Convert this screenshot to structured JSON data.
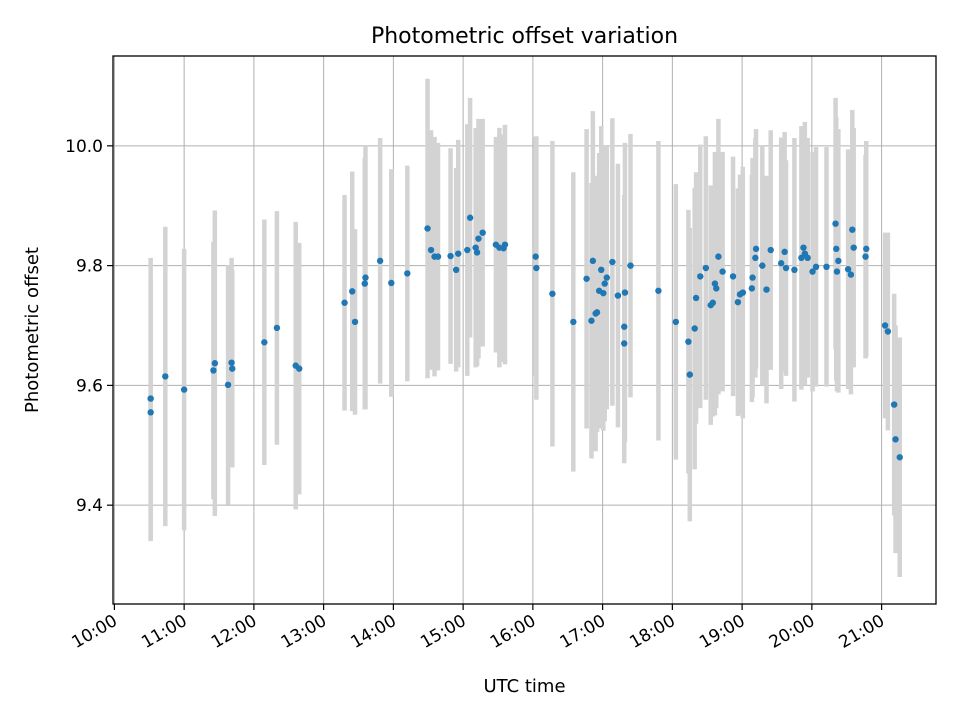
{
  "chart_data": {
    "type": "scatter",
    "title": "Photometric offset variation",
    "xlabel": "UTC time",
    "ylabel": "Photometric offset",
    "xlim": [
      9.98,
      21.78
    ],
    "ylim": [
      9.235,
      10.15
    ],
    "grid": true,
    "x_ticks": [
      10,
      11,
      12,
      13,
      14,
      15,
      16,
      17,
      18,
      19,
      20,
      21
    ],
    "x_tick_labels": [
      "10:00",
      "11:00",
      "12:00",
      "13:00",
      "14:00",
      "15:00",
      "16:00",
      "17:00",
      "18:00",
      "19:00",
      "20:00",
      "21:00"
    ],
    "y_ticks": [
      9.4,
      9.6,
      9.8,
      10.0
    ],
    "y_tick_labels": [
      "9.4",
      "9.6",
      "9.8",
      "10.0"
    ],
    "colors": {
      "point": "#1f77b4",
      "errorbar": "#d3d3d3",
      "grid": "#b0b0b0"
    },
    "series": [
      {
        "name": "offset",
        "points": [
          {
            "x": 10.52,
            "y": 9.578,
            "err": 0.235
          },
          {
            "x": 10.52,
            "y": 9.555,
            "err": 0.215
          },
          {
            "x": 10.73,
            "y": 9.615,
            "err": 0.25
          },
          {
            "x": 11.0,
            "y": 9.593,
            "err": 0.235
          },
          {
            "x": 11.42,
            "y": 9.625,
            "err": 0.215
          },
          {
            "x": 11.44,
            "y": 9.637,
            "err": 0.255
          },
          {
            "x": 11.63,
            "y": 9.601,
            "err": 0.2
          },
          {
            "x": 11.68,
            "y": 9.638,
            "err": 0.175
          },
          {
            "x": 11.69,
            "y": 9.628,
            "err": 0.165
          },
          {
            "x": 12.15,
            "y": 9.672,
            "err": 0.205
          },
          {
            "x": 12.33,
            "y": 9.696,
            "err": 0.195
          },
          {
            "x": 12.6,
            "y": 9.633,
            "err": 0.24
          },
          {
            "x": 12.65,
            "y": 9.628,
            "err": 0.21
          },
          {
            "x": 13.3,
            "y": 9.738,
            "err": 0.18
          },
          {
            "x": 13.41,
            "y": 9.757,
            "err": 0.2
          },
          {
            "x": 13.45,
            "y": 9.706,
            "err": 0.155
          },
          {
            "x": 13.59,
            "y": 9.77,
            "err": 0.21
          },
          {
            "x": 13.6,
            "y": 9.78,
            "err": 0.22
          },
          {
            "x": 13.81,
            "y": 9.808,
            "err": 0.205
          },
          {
            "x": 13.97,
            "y": 9.771,
            "err": 0.19
          },
          {
            "x": 14.2,
            "y": 9.787,
            "err": 0.18
          },
          {
            "x": 14.49,
            "y": 9.862,
            "err": 0.25
          },
          {
            "x": 14.54,
            "y": 9.826,
            "err": 0.2
          },
          {
            "x": 14.59,
            "y": 9.815,
            "err": 0.2
          },
          {
            "x": 14.64,
            "y": 9.815,
            "err": 0.19
          },
          {
            "x": 14.82,
            "y": 9.816,
            "err": 0.18
          },
          {
            "x": 14.9,
            "y": 9.793,
            "err": 0.17
          },
          {
            "x": 14.93,
            "y": 9.82,
            "err": 0.19
          },
          {
            "x": 15.06,
            "y": 9.826,
            "err": 0.21
          },
          {
            "x": 15.1,
            "y": 9.88,
            "err": 0.2
          },
          {
            "x": 15.18,
            "y": 9.83,
            "err": 0.2
          },
          {
            "x": 15.2,
            "y": 9.822,
            "err": 0.19
          },
          {
            "x": 15.22,
            "y": 9.845,
            "err": 0.2
          },
          {
            "x": 15.28,
            "y": 9.855,
            "err": 0.19
          },
          {
            "x": 15.47,
            "y": 9.835,
            "err": 0.18
          },
          {
            "x": 15.52,
            "y": 9.83,
            "err": 0.2
          },
          {
            "x": 15.58,
            "y": 9.829,
            "err": 0.19
          },
          {
            "x": 15.6,
            "y": 9.835,
            "err": 0.2
          },
          {
            "x": 16.04,
            "y": 9.815,
            "err": 0.2
          },
          {
            "x": 16.05,
            "y": 9.796,
            "err": 0.22
          },
          {
            "x": 16.28,
            "y": 9.753,
            "err": 0.255
          },
          {
            "x": 16.58,
            "y": 9.706,
            "err": 0.25
          },
          {
            "x": 16.77,
            "y": 9.778,
            "err": 0.25
          },
          {
            "x": 16.84,
            "y": 9.708,
            "err": 0.23
          },
          {
            "x": 16.86,
            "y": 9.808,
            "err": 0.25
          },
          {
            "x": 16.9,
            "y": 9.72,
            "err": 0.23
          },
          {
            "x": 16.92,
            "y": 9.722,
            "err": 0.2
          },
          {
            "x": 16.95,
            "y": 9.758,
            "err": 0.23
          },
          {
            "x": 16.98,
            "y": 9.793,
            "err": 0.24
          },
          {
            "x": 17.01,
            "y": 9.754,
            "err": 0.23
          },
          {
            "x": 17.03,
            "y": 9.77,
            "err": 0.23
          },
          {
            "x": 17.06,
            "y": 9.78,
            "err": 0.22
          },
          {
            "x": 17.14,
            "y": 9.806,
            "err": 0.24
          },
          {
            "x": 17.22,
            "y": 9.75,
            "err": 0.22
          },
          {
            "x": 17.31,
            "y": 9.67,
            "err": 0.2
          },
          {
            "x": 17.31,
            "y": 9.698,
            "err": 0.22
          },
          {
            "x": 17.32,
            "y": 9.755,
            "err": 0.25
          },
          {
            "x": 17.4,
            "y": 9.8,
            "err": 0.22
          },
          {
            "x": 17.8,
            "y": 9.758,
            "err": 0.25
          },
          {
            "x": 18.05,
            "y": 9.706,
            "err": 0.23
          },
          {
            "x": 18.23,
            "y": 9.673,
            "err": 0.22
          },
          {
            "x": 18.25,
            "y": 9.618,
            "err": 0.245
          },
          {
            "x": 18.32,
            "y": 9.695,
            "err": 0.235
          },
          {
            "x": 18.34,
            "y": 9.746,
            "err": 0.21
          },
          {
            "x": 18.4,
            "y": 9.782,
            "err": 0.22
          },
          {
            "x": 18.48,
            "y": 9.796,
            "err": 0.22
          },
          {
            "x": 18.55,
            "y": 9.734,
            "err": 0.2
          },
          {
            "x": 18.58,
            "y": 9.738,
            "err": 0.19
          },
          {
            "x": 18.61,
            "y": 9.77,
            "err": 0.22
          },
          {
            "x": 18.63,
            "y": 9.762,
            "err": 0.2
          },
          {
            "x": 18.66,
            "y": 9.815,
            "err": 0.23
          },
          {
            "x": 18.72,
            "y": 9.79,
            "err": 0.2
          },
          {
            "x": 18.87,
            "y": 9.782,
            "err": 0.2
          },
          {
            "x": 18.94,
            "y": 9.739,
            "err": 0.19
          },
          {
            "x": 18.97,
            "y": 9.752,
            "err": 0.2
          },
          {
            "x": 19.01,
            "y": 9.755,
            "err": 0.21
          },
          {
            "x": 19.14,
            "y": 9.762,
            "err": 0.19
          },
          {
            "x": 19.15,
            "y": 9.78,
            "err": 0.2
          },
          {
            "x": 19.19,
            "y": 9.813,
            "err": 0.2
          },
          {
            "x": 19.2,
            "y": 9.828,
            "err": 0.2
          },
          {
            "x": 19.29,
            "y": 9.8,
            "err": 0.2
          },
          {
            "x": 19.35,
            "y": 9.76,
            "err": 0.19
          },
          {
            "x": 19.41,
            "y": 9.826,
            "err": 0.2
          },
          {
            "x": 19.56,
            "y": 9.804,
            "err": 0.21
          },
          {
            "x": 19.61,
            "y": 9.823,
            "err": 0.2
          },
          {
            "x": 19.63,
            "y": 9.796,
            "err": 0.18
          },
          {
            "x": 19.75,
            "y": 9.793,
            "err": 0.22
          },
          {
            "x": 19.85,
            "y": 9.813,
            "err": 0.22
          },
          {
            "x": 19.88,
            "y": 9.83,
            "err": 0.2
          },
          {
            "x": 19.9,
            "y": 9.82,
            "err": 0.22
          },
          {
            "x": 19.94,
            "y": 9.813,
            "err": 0.2
          },
          {
            "x": 20.01,
            "y": 9.79,
            "err": 0.2
          },
          {
            "x": 20.06,
            "y": 9.798,
            "err": 0.2
          },
          {
            "x": 20.21,
            "y": 9.798,
            "err": 0.2
          },
          {
            "x": 20.34,
            "y": 9.87,
            "err": 0.21
          },
          {
            "x": 20.35,
            "y": 9.828,
            "err": 0.22
          },
          {
            "x": 20.36,
            "y": 9.79,
            "err": 0.2
          },
          {
            "x": 20.38,
            "y": 9.808,
            "err": 0.22
          },
          {
            "x": 20.52,
            "y": 9.794,
            "err": 0.2
          },
          {
            "x": 20.56,
            "y": 9.785,
            "err": 0.2
          },
          {
            "x": 20.58,
            "y": 9.86,
            "err": 0.2
          },
          {
            "x": 20.6,
            "y": 9.83,
            "err": 0.2
          },
          {
            "x": 20.77,
            "y": 9.815,
            "err": 0.17
          },
          {
            "x": 20.78,
            "y": 9.828,
            "err": 0.18
          },
          {
            "x": 21.05,
            "y": 9.7,
            "err": 0.155
          },
          {
            "x": 21.09,
            "y": 9.69,
            "err": 0.165
          },
          {
            "x": 21.18,
            "y": 9.568,
            "err": 0.185
          },
          {
            "x": 21.2,
            "y": 9.51,
            "err": 0.19
          },
          {
            "x": 21.26,
            "y": 9.48,
            "err": 0.2
          }
        ]
      }
    ]
  }
}
